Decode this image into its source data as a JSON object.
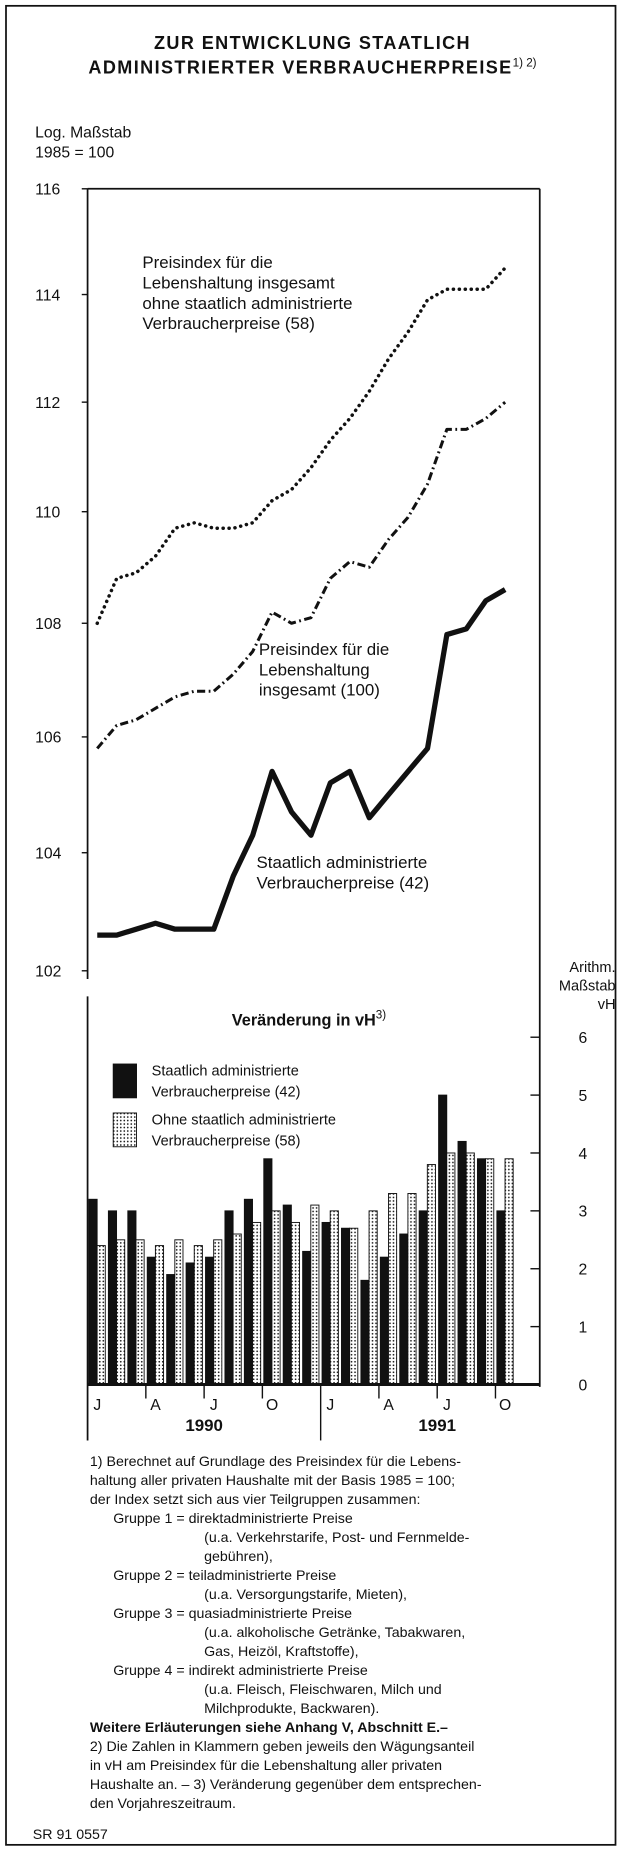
{
  "title": [
    "ZUR ENTWICKLUNG STAATLICH",
    "ADMINISTRIERTER VERBRAUCHERPREISE"
  ],
  "title_note": "1) 2)",
  "chart_data": [
    {
      "type": "line",
      "log_scale": true,
      "ylabel": [
        "Log. Maßstab",
        "1985 = 100"
      ],
      "ylim": [
        102,
        116
      ],
      "yticks": [
        102,
        104,
        106,
        108,
        110,
        112,
        114,
        116
      ],
      "series": [
        {
          "name": [
            "Preisindex für die",
            "Lebenshaltung insgesamt",
            "ohne staatlich administrierte",
            "Verbraucherpreise (58)"
          ],
          "color": "#111",
          "style": "dotted",
          "values": [
            108.0,
            108.8,
            108.9,
            109.2,
            109.7,
            109.8,
            109.7,
            109.7,
            109.8,
            110.2,
            110.4,
            110.8,
            111.3,
            111.7,
            112.2,
            112.8,
            113.3,
            113.9,
            114.1,
            114.1,
            114.1,
            114.5
          ]
        },
        {
          "name": [
            "Preisindex für die",
            "Lebenshaltung",
            "insgesamt (100)"
          ],
          "color": "#111",
          "style": "dashdot",
          "values": [
            105.8,
            106.2,
            106.3,
            106.5,
            106.7,
            106.8,
            106.8,
            107.1,
            107.5,
            108.2,
            108.0,
            108.1,
            108.8,
            109.1,
            109.0,
            109.5,
            109.9,
            110.5,
            111.5,
            111.5,
            111.7,
            112.0
          ]
        },
        {
          "name": [
            "Staatlich administrierte",
            "Verbraucherpreise (42)"
          ],
          "color": "#111",
          "style": "solid",
          "values": [
            102.6,
            102.6,
            102.7,
            102.8,
            102.7,
            102.7,
            102.7,
            103.6,
            104.3,
            105.4,
            104.7,
            104.3,
            105.2,
            105.4,
            104.6,
            105.0,
            105.4,
            105.8,
            107.8,
            107.9,
            108.4,
            108.6
          ]
        }
      ]
    },
    {
      "type": "bar",
      "title": "Veränderung in vH",
      "title_note": "3)",
      "ylabel": [
        "Arithm.",
        "Maßstab",
        "vH"
      ],
      "ylim": [
        0,
        6
      ],
      "yticks": [
        0,
        1,
        2,
        3,
        4,
        5,
        6
      ],
      "categories": [
        "J",
        null,
        null,
        "A",
        null,
        null,
        "J",
        null,
        null,
        "O",
        null,
        null,
        "J",
        null,
        null,
        "A",
        null,
        null,
        "J",
        null,
        null,
        "O"
      ],
      "years": [
        "1990",
        "1991"
      ],
      "series": [
        {
          "name": [
            "Staatlich administrierte",
            "Verbraucherpreise (42)"
          ],
          "color": "#111",
          "pattern": "solid",
          "values": [
            3.2,
            3.0,
            3.0,
            2.2,
            1.9,
            2.1,
            2.2,
            3.0,
            3.2,
            3.9,
            3.1,
            2.3,
            2.8,
            2.7,
            1.8,
            2.2,
            2.6,
            3.0,
            5.0,
            4.2,
            3.9,
            3.0
          ]
        },
        {
          "name": [
            "Ohne staatlich administrierte",
            "Verbraucherpreise (58)"
          ],
          "color": "#111",
          "pattern": "dotted",
          "values": [
            2.4,
            2.5,
            2.5,
            2.4,
            2.5,
            2.4,
            2.5,
            2.6,
            2.8,
            3.0,
            2.8,
            3.1,
            3.0,
            2.7,
            3.0,
            3.3,
            3.3,
            3.8,
            4.0,
            4.0,
            3.9,
            3.9
          ]
        }
      ]
    }
  ],
  "footnotes": [
    "1) Berechnet auf Grundlage des Preisindex für die Lebens-",
    "haltung aller privaten Haushalte mit der Basis 1985 = 100;",
    "der Index setzt sich aus vier Teilgruppen zusammen:",
    "Gruppe 1 = direktadministrierte Preise",
    "(u.a. Verkehrstarife, Post- und Fernmelde-",
    "gebühren),",
    "Gruppe 2 = teiladministrierte Preise",
    "(u.a. Versorgungstarife, Mieten),",
    "Gruppe 3 = quasiadministrierte Preise",
    "(u.a. alkoholische Getränke, Tabakwaren,",
    "Gas, Heizöl, Kraftstoffe),",
    "Gruppe 4 = indirekt administrierte Preise",
    "(u.a. Fleisch, Fleischwaren, Milch und",
    "Milchprodukte, Backwaren).",
    "Weitere Erläuterungen siehe Anhang V, Abschnitt E.–",
    "2) Die Zahlen in Klammern geben jeweils den Wägungsanteil",
    "in vH am Preisindex für die Lebenshaltung aller privaten",
    "Haushalte an. – 3) Veränderung gegenüber dem entsprechen-",
    "den Vorjahreszeitraum."
  ],
  "source": "SR 91 0557"
}
